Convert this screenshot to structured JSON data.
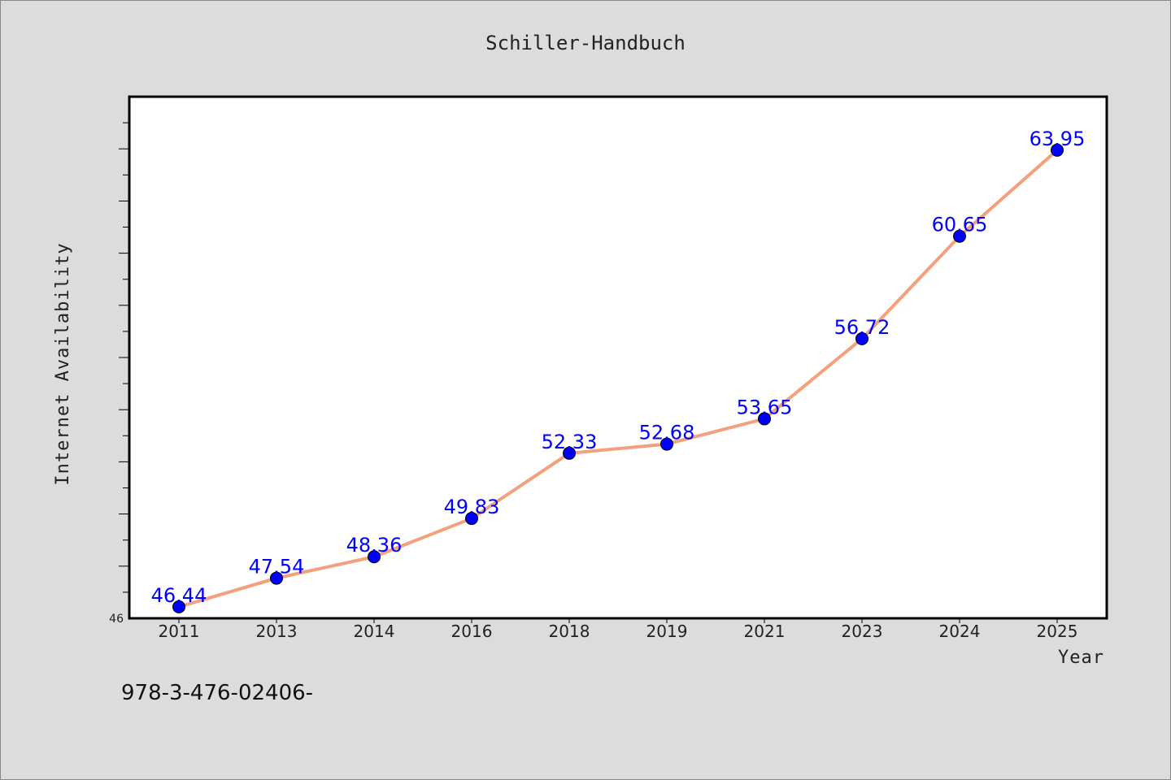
{
  "chart_data": {
    "type": "line",
    "title": "Schiller-Handbuch",
    "xlabel": "Year",
    "ylabel": "Internet Availability",
    "categories": [
      "2011",
      "2013",
      "2014",
      "2016",
      "2018",
      "2019",
      "2021",
      "2023",
      "2024",
      "2025"
    ],
    "series": [
      {
        "values": [
          46.44,
          47.54,
          48.36,
          49.83,
          52.33,
          52.68,
          53.65,
          56.72,
          60.65,
          63.95
        ],
        "data_labels": [
          "46.44",
          "47.54",
          "48.36",
          "49.83",
          "52.33",
          "52.68",
          "53.65",
          "56.72",
          "60.65",
          "63.95"
        ]
      }
    ],
    "ylim": [
      46,
      66
    ],
    "y_tick_labels": [
      "46"
    ],
    "line_color": "#f4a07c",
    "marker_color": "#0000ff",
    "data_label_color": "#0000ff",
    "grid": false
  },
  "footer": {
    "text": "978-3-476-02406-"
  }
}
